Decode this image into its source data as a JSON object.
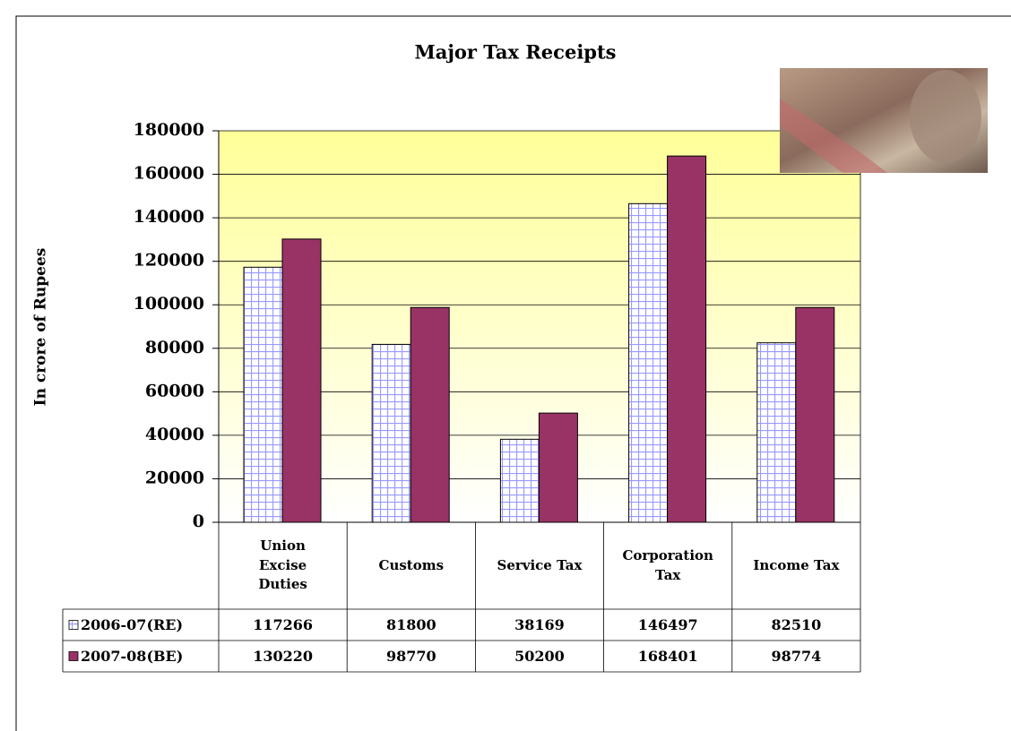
{
  "chart_data": {
    "type": "bar",
    "title": "Major Tax Receipts",
    "y_label": "In crore of Rupees",
    "categories": [
      "Union\nExcise\nDuties",
      "Customs",
      "Service Tax",
      "Corporation\nTax",
      "Income Tax"
    ],
    "series": [
      {
        "name": "2006-07(RE)",
        "color": "#9999ff",
        "values": [
          117266,
          81800,
          38169,
          146497,
          82510
        ]
      },
      {
        "name": "2007-08(BE)",
        "color": "#993366",
        "values": [
          130220,
          98770,
          50200,
          168401,
          98774
        ]
      }
    ],
    "ylim": [
      0,
      180000
    ],
    "yticks": [
      0,
      20000,
      40000,
      60000,
      80000,
      100000,
      120000,
      140000,
      160000,
      180000
    ],
    "grid": true,
    "data_table": true
  }
}
